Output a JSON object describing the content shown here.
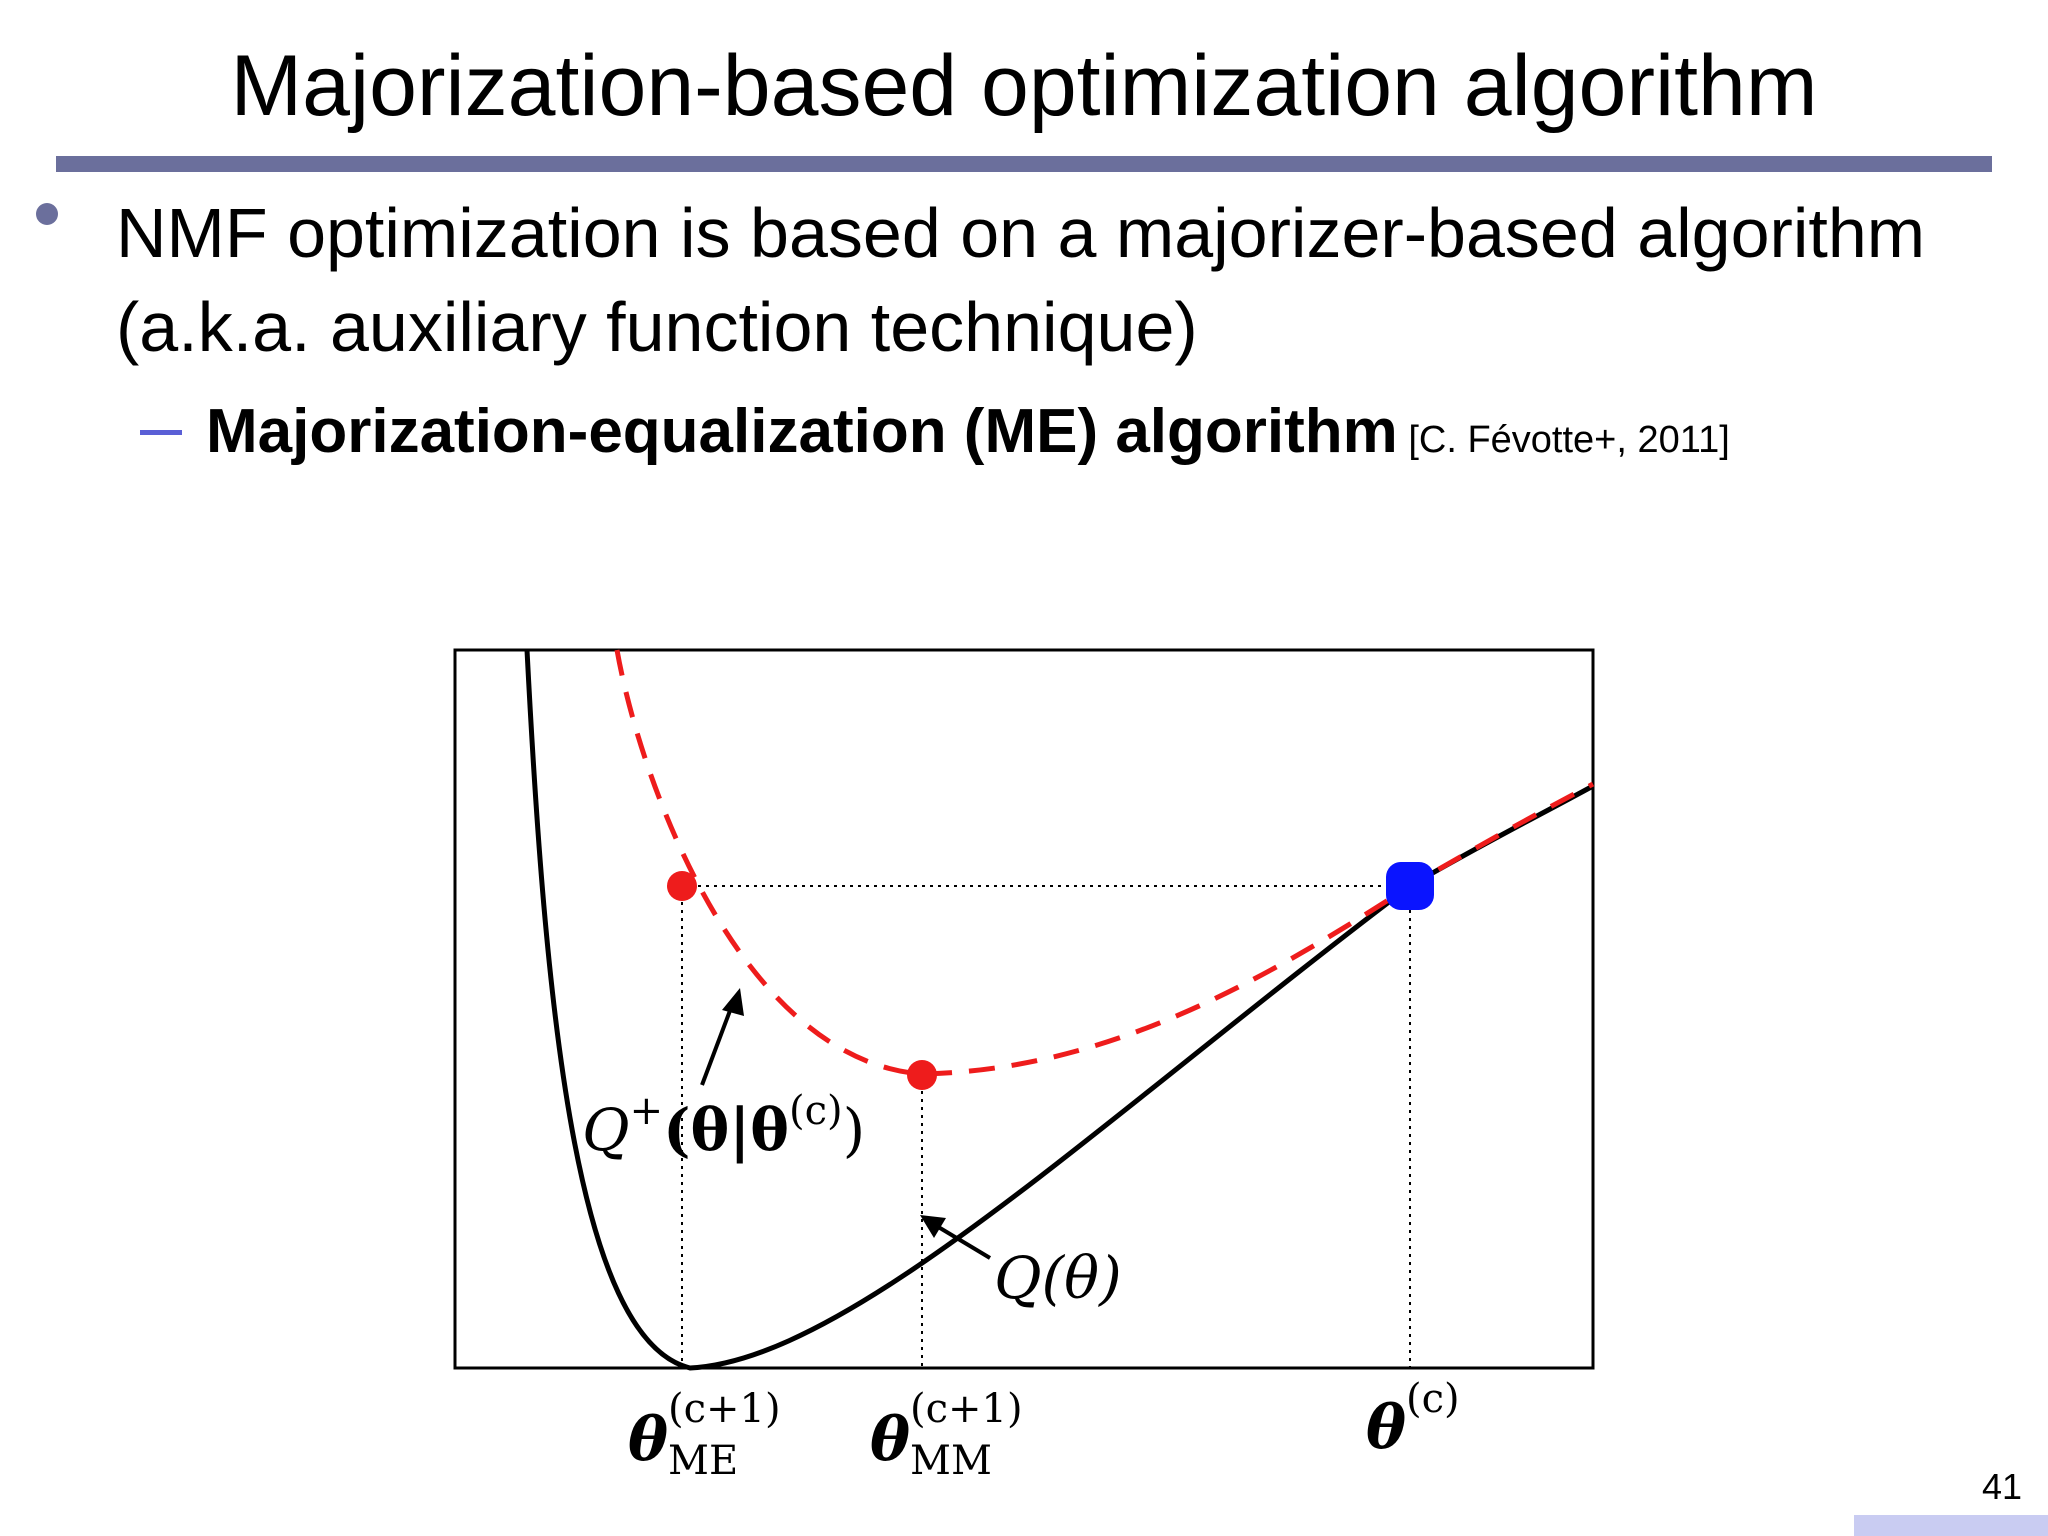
{
  "slide": {
    "title": "Majorization-based optimization algorithm",
    "bullet": "NMF optimization is based on a majorizer-based algorithm (a.k.a. auxiliary function technique)",
    "sub_bold": "Majorization-equalization (ME) algorithm",
    "sub_cite": " [C. Févotte+, 2011]",
    "page_number": "41"
  },
  "colors": {
    "rule": "#6b6f9c",
    "bullet": "#6b6f9c",
    "dash": "#5a5fd6",
    "corner": "#c9ccf2",
    "majorizer": "#ee1c1c",
    "current_point": "#0a14ff"
  },
  "figure": {
    "curve_label_Q": "Q(θ)",
    "curve_label_Qplus_base": "Q",
    "curve_label_Qplus_sup": "+",
    "curve_label_Qplus_body": "(θ|θ",
    "curve_label_Qplus_body_sup": "(c)",
    "curve_label_Qplus_close": ")",
    "theta": "θ",
    "sup_c1": "(c+1)",
    "sup_c": "(c)",
    "sub_me": "ME",
    "sub_mm": "MM"
  }
}
